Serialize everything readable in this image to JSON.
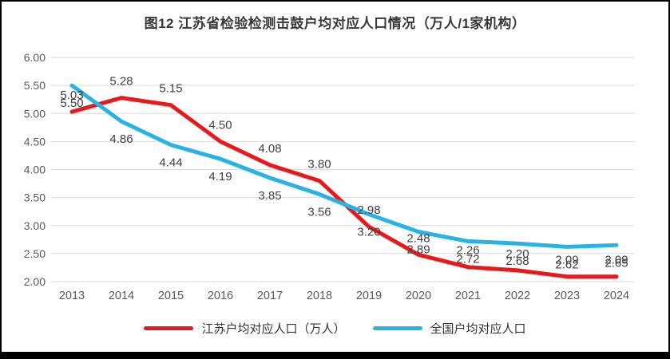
{
  "figure": {
    "title": "图12  江苏省检验检测击鼓户均对应人口情况（万人/1家机构）"
  },
  "chart_data": {
    "type": "line",
    "title": "图12  江苏省检验检测击鼓户均对应人口情况（万人/1家机构）",
    "categories": [
      "2013",
      "2014",
      "2015",
      "2016",
      "2017",
      "2018",
      "2019",
      "2020",
      "2021",
      "2022",
      "2023",
      "2024"
    ],
    "series": [
      {
        "key": "jiangsu",
        "name": "江苏户均对应人口（万人）",
        "color": "#e8191c",
        "values": [
          5.03,
          5.28,
          5.15,
          4.5,
          4.08,
          3.8,
          2.98,
          2.48,
          2.26,
          2.2,
          2.09,
          2.09
        ],
        "label_position": "above"
      },
      {
        "key": "national",
        "name": "全国户均对应人口",
        "color": "#29b3e3",
        "values": [
          5.5,
          4.86,
          4.44,
          4.19,
          3.85,
          3.56,
          3.2,
          2.89,
          2.72,
          2.68,
          2.62,
          2.65
        ],
        "label_position": "below"
      }
    ],
    "xlabel": "",
    "ylabel": "",
    "ylim": [
      2.0,
      6.0
    ],
    "ytick_step": 0.5,
    "ytick_labels": [
      "2.00",
      "2.50",
      "3.00",
      "3.50",
      "4.00",
      "4.50",
      "5.00",
      "5.50",
      "6.00"
    ],
    "grid": true,
    "data_labels": true,
    "data_label_decimals": 2,
    "legend_position": "bottom"
  },
  "style_colors": {
    "gridline": "#d9d9d9",
    "tick_text": "#595959",
    "data_label_text": "#404040",
    "legend_text": "#333333",
    "title_text": "#383838"
  }
}
